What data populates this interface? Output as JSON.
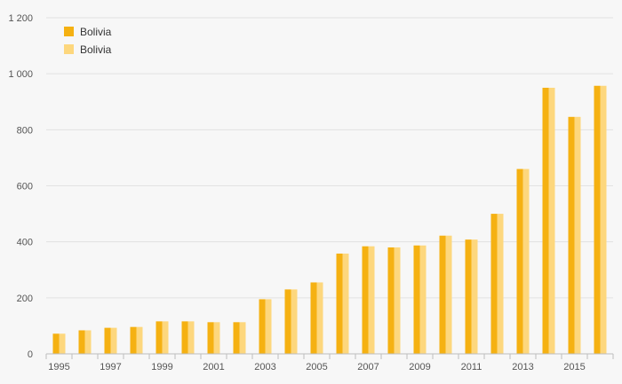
{
  "chart_data": {
    "type": "bar",
    "title": "",
    "xlabel": "",
    "ylabel": "",
    "categories": [
      "1995",
      "1996",
      "1997",
      "1998",
      "1999",
      "2000",
      "2001",
      "2002",
      "2003",
      "2004",
      "2005",
      "2006",
      "2007",
      "2008",
      "2009",
      "2010",
      "2011",
      "2012",
      "2013",
      "2014",
      "2015",
      "2016"
    ],
    "x_tick_labels": [
      "1995",
      "1997",
      "1999",
      "2001",
      "2003",
      "2005",
      "2007",
      "2009",
      "2011",
      "2013",
      "2015"
    ],
    "series": [
      {
        "name": "Bolivia",
        "color": "#f5b112",
        "values": [
          72,
          84,
          93,
          96,
          116,
          116,
          113,
          113,
          195,
          230,
          255,
          358,
          384,
          380,
          387,
          422,
          408,
          500,
          660,
          950,
          846,
          957
        ]
      },
      {
        "name": "Bolivia",
        "color": "#fdd77d",
        "values": [
          72,
          84,
          93,
          96,
          116,
          116,
          113,
          113,
          195,
          230,
          255,
          358,
          384,
          380,
          387,
          422,
          408,
          500,
          660,
          950,
          846,
          957
        ]
      }
    ],
    "ylim": [
      0,
      1200
    ],
    "y_ticks": [
      0,
      200,
      400,
      600,
      800,
      1000,
      1200
    ],
    "y_tick_labels": [
      "0",
      "200",
      "400",
      "600",
      "800",
      "1 000",
      "1 200"
    ],
    "grid": true,
    "legend_position": "top-left"
  }
}
